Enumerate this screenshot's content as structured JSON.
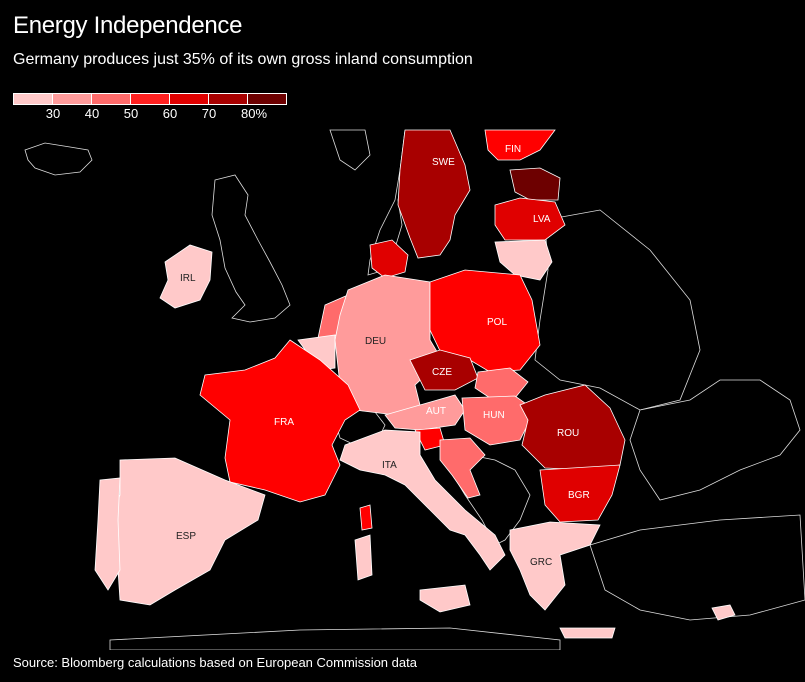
{
  "header": {
    "title": "Energy Independence",
    "subtitle": "Germany produces just 35% of its own gross inland consumption"
  },
  "legend": {
    "ticks": [
      "30",
      "40",
      "50",
      "60",
      "70",
      "80%"
    ],
    "colors": [
      "#ffc9c9",
      "#ff9b9b",
      "#ff6b6b",
      "#ff2020",
      "#e00000",
      "#a80000",
      "#6d0000"
    ]
  },
  "countries": {
    "SWE": "SWE",
    "FIN": "FIN",
    "LVA": "LVA",
    "IRL": "IRL",
    "DEU": "DEU",
    "POL": "POL",
    "CZE": "CZE",
    "FRA": "FRA",
    "AUT": "AUT",
    "HUN": "HUN",
    "ROU": "ROU",
    "ITA": "ITA",
    "BGR": "BGR",
    "ESP": "ESP",
    "GRC": "GRC"
  },
  "source": "Source: Bloomberg calculations based on European Commission data"
}
